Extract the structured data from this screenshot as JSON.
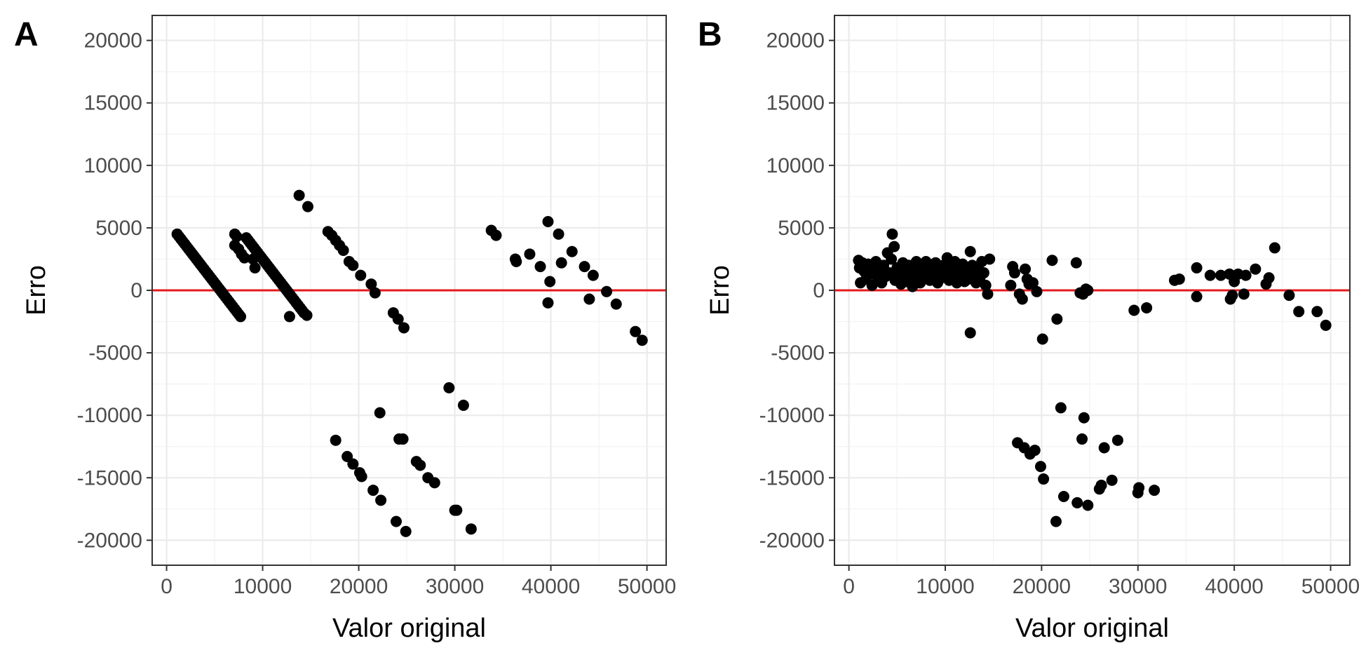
{
  "chart_data": [
    {
      "type": "scatter",
      "panel": "A",
      "xlabel": "Valor original",
      "ylabel": "Erro",
      "xlim": [
        -1500,
        52000
      ],
      "ylim": [
        -22000,
        22000
      ],
      "xticks": [
        0,
        10000,
        20000,
        30000,
        40000,
        50000
      ],
      "yticks": [
        -20000,
        -15000,
        -10000,
        -5000,
        0,
        5000,
        10000,
        15000,
        20000
      ],
      "hline": {
        "y": 0,
        "color": "#e41a1c"
      },
      "grid": true,
      "series": [
        {
          "points": [
            [
              1100,
              4500
            ],
            [
              1300,
              4300
            ],
            [
              1500,
              4100
            ],
            [
              1700,
              3900
            ],
            [
              1900,
              3700
            ],
            [
              2100,
              3500
            ],
            [
              2300,
              3300
            ],
            [
              2500,
              3100
            ],
            [
              2700,
              2900
            ],
            [
              2900,
              2700
            ],
            [
              3100,
              2500
            ],
            [
              3300,
              2300
            ],
            [
              3500,
              2100
            ],
            [
              3700,
              1900
            ],
            [
              3900,
              1700
            ],
            [
              4100,
              1500
            ],
            [
              4300,
              1300
            ],
            [
              4500,
              1100
            ],
            [
              4700,
              900
            ],
            [
              4900,
              700
            ],
            [
              5100,
              500
            ],
            [
              5300,
              300
            ],
            [
              5500,
              100
            ],
            [
              5700,
              -100
            ],
            [
              5900,
              -300
            ],
            [
              6100,
              -500
            ],
            [
              6300,
              -700
            ],
            [
              6500,
              -900
            ],
            [
              6700,
              -1100
            ],
            [
              6900,
              -1300
            ],
            [
              7100,
              -1500
            ],
            [
              7300,
              -1700
            ],
            [
              7500,
              -1900
            ],
            [
              7700,
              -2100
            ],
            [
              7100,
              4500
            ],
            [
              7300,
              4300
            ],
            [
              7100,
              3600
            ],
            [
              7500,
              3300
            ],
            [
              7800,
              2900
            ],
            [
              8100,
              2600
            ],
            [
              8300,
              4200
            ],
            [
              8500,
              4000
            ],
            [
              8700,
              3800
            ],
            [
              8900,
              3600
            ],
            [
              9100,
              3400
            ],
            [
              9300,
              3200
            ],
            [
              9000,
              2500
            ],
            [
              9200,
              1800
            ],
            [
              9500,
              3000
            ],
            [
              9700,
              2800
            ],
            [
              9900,
              2600
            ],
            [
              10100,
              2400
            ],
            [
              10300,
              2200
            ],
            [
              10500,
              2000
            ],
            [
              10700,
              1800
            ],
            [
              10900,
              1600
            ],
            [
              11100,
              1400
            ],
            [
              11300,
              1200
            ],
            [
              11500,
              1000
            ],
            [
              11700,
              800
            ],
            [
              11900,
              600
            ],
            [
              12100,
              400
            ],
            [
              12300,
              200
            ],
            [
              12500,
              0
            ],
            [
              12700,
              -200
            ],
            [
              12900,
              -400
            ],
            [
              13100,
              -600
            ],
            [
              13300,
              -800
            ],
            [
              13500,
              -1000
            ],
            [
              13700,
              -1200
            ],
            [
              13900,
              -1400
            ],
            [
              14100,
              -1600
            ],
            [
              14300,
              -1800
            ],
            [
              14600,
              -2000
            ],
            [
              12800,
              -2100
            ],
            [
              13800,
              7600
            ],
            [
              14700,
              6700
            ],
            [
              16800,
              4700
            ],
            [
              17200,
              4400
            ],
            [
              17600,
              4000
            ],
            [
              18000,
              3600
            ],
            [
              18400,
              3200
            ],
            [
              19000,
              2300
            ],
            [
              19400,
              2000
            ],
            [
              20200,
              1200
            ],
            [
              21300,
              500
            ],
            [
              21700,
              -200
            ],
            [
              23600,
              -1800
            ],
            [
              24100,
              -2300
            ],
            [
              24700,
              -3000
            ],
            [
              17600,
              -12000
            ],
            [
              18800,
              -13300
            ],
            [
              19400,
              -13900
            ],
            [
              20100,
              -14600
            ],
            [
              20300,
              -14900
            ],
            [
              21500,
              -16000
            ],
            [
              22300,
              -16800
            ],
            [
              22200,
              -9800
            ],
            [
              23900,
              -18500
            ],
            [
              24200,
              -11900
            ],
            [
              24600,
              -11900
            ],
            [
              24900,
              -19300
            ],
            [
              26000,
              -13700
            ],
            [
              26400,
              -14000
            ],
            [
              27200,
              -15000
            ],
            [
              27900,
              -15400
            ],
            [
              29400,
              -7800
            ],
            [
              30000,
              -17600
            ],
            [
              30200,
              -17600
            ],
            [
              30900,
              -9200
            ],
            [
              31700,
              -19100
            ],
            [
              33800,
              4800
            ],
            [
              34300,
              4400
            ],
            [
              36300,
              2500
            ],
            [
              36400,
              2300
            ],
            [
              37800,
              2900
            ],
            [
              38900,
              1900
            ],
            [
              39700,
              5500
            ],
            [
              39700,
              -1000
            ],
            [
              39900,
              700
            ],
            [
              40800,
              4500
            ],
            [
              41100,
              2200
            ],
            [
              42200,
              3100
            ],
            [
              43500,
              1900
            ],
            [
              44000,
              -700
            ],
            [
              44400,
              1200
            ],
            [
              45800,
              -100
            ],
            [
              46800,
              -1100
            ],
            [
              48800,
              -3300
            ],
            [
              49500,
              -4000
            ]
          ]
        }
      ]
    },
    {
      "type": "scatter",
      "panel": "B",
      "xlabel": "Valor original",
      "ylabel": "Erro",
      "xlim": [
        -1500,
        52000
      ],
      "ylim": [
        -22000,
        22000
      ],
      "xticks": [
        0,
        10000,
        20000,
        30000,
        40000,
        50000
      ],
      "yticks": [
        -20000,
        -15000,
        -10000,
        -5000,
        0,
        5000,
        10000,
        15000,
        20000
      ],
      "hline": {
        "y": 0,
        "color": "#e41a1c"
      },
      "grid": true,
      "series": [
        {
          "points": [
            [
              1000,
              2400
            ],
            [
              1100,
              1800
            ],
            [
              1200,
              600
            ],
            [
              1400,
              2200
            ],
            [
              1600,
              1500
            ],
            [
              1800,
              900
            ],
            [
              2000,
              2100
            ],
            [
              2200,
              1300
            ],
            [
              2400,
              400
            ],
            [
              2600,
              1700
            ],
            [
              2800,
              2300
            ],
            [
              3000,
              900
            ],
            [
              3200,
              1500
            ],
            [
              3400,
              600
            ],
            [
              3600,
              2000
            ],
            [
              3800,
              1100
            ],
            [
              4000,
              3000
            ],
            [
              4200,
              1400
            ],
            [
              4400,
              2500
            ],
            [
              4500,
              4500
            ],
            [
              4700,
              3500
            ],
            [
              4800,
              800
            ],
            [
              5000,
              1800
            ],
            [
              5200,
              1200
            ],
            [
              5400,
              500
            ],
            [
              5600,
              2200
            ],
            [
              5800,
              1500
            ],
            [
              6000,
              700
            ],
            [
              6200,
              2000
            ],
            [
              6400,
              1000
            ],
            [
              6600,
              300
            ],
            [
              6800,
              1700
            ],
            [
              7000,
              2300
            ],
            [
              7200,
              1300
            ],
            [
              7400,
              600
            ],
            [
              7600,
              1900
            ],
            [
              7800,
              1100
            ],
            [
              8000,
              2300
            ],
            [
              8200,
              1500
            ],
            [
              8400,
              800
            ],
            [
              8600,
              2000
            ],
            [
              8800,
              1300
            ],
            [
              9000,
              2200
            ],
            [
              9200,
              600
            ],
            [
              9400,
              1700
            ],
            [
              9600,
              1000
            ],
            [
              9800,
              2000
            ],
            [
              10000,
              1400
            ],
            [
              10200,
              2600
            ],
            [
              10400,
              800
            ],
            [
              10600,
              1900
            ],
            [
              10800,
              1200
            ],
            [
              11000,
              2300
            ],
            [
              11200,
              600
            ],
            [
              11400,
              1700
            ],
            [
              11600,
              1100
            ],
            [
              11800,
              2100
            ],
            [
              12000,
              700
            ],
            [
              12200,
              1500
            ],
            [
              12400,
              900
            ],
            [
              12600,
              3100
            ],
            [
              12800,
              2000
            ],
            [
              13000,
              1300
            ],
            [
              13200,
              600
            ],
            [
              13400,
              1800
            ],
            [
              13600,
              1000
            ],
            [
              13800,
              2300
            ],
            [
              14000,
              1400
            ],
            [
              14200,
              400
            ],
            [
              14400,
              -300
            ],
            [
              14600,
              2500
            ],
            [
              12600,
              -3400
            ],
            [
              16800,
              400
            ],
            [
              17000,
              1900
            ],
            [
              17200,
              1400
            ],
            [
              17700,
              -300
            ],
            [
              18000,
              -700
            ],
            [
              18300,
              1700
            ],
            [
              18500,
              900
            ],
            [
              18700,
              500
            ],
            [
              19100,
              600
            ],
            [
              19500,
              -100
            ],
            [
              20100,
              -3900
            ],
            [
              21100,
              2400
            ],
            [
              21600,
              -2300
            ],
            [
              23600,
              2200
            ],
            [
              24000,
              -200
            ],
            [
              24300,
              -300
            ],
            [
              24600,
              100
            ],
            [
              24800,
              0
            ],
            [
              17500,
              -12200
            ],
            [
              18200,
              -12600
            ],
            [
              18800,
              -13100
            ],
            [
              19300,
              -12800
            ],
            [
              19900,
              -14100
            ],
            [
              20200,
              -15100
            ],
            [
              21500,
              -18500
            ],
            [
              22000,
              -9400
            ],
            [
              22300,
              -16500
            ],
            [
              23700,
              -17000
            ],
            [
              24200,
              -11900
            ],
            [
              24400,
              -10200
            ],
            [
              24800,
              -17200
            ],
            [
              26000,
              -15900
            ],
            [
              26200,
              -15600
            ],
            [
              26500,
              -12600
            ],
            [
              27300,
              -15200
            ],
            [
              27900,
              -12000
            ],
            [
              30000,
              -16200
            ],
            [
              30100,
              -15800
            ],
            [
              31700,
              -16000
            ],
            [
              29600,
              -1600
            ],
            [
              30900,
              -1400
            ],
            [
              33800,
              800
            ],
            [
              34300,
              900
            ],
            [
              36100,
              1800
            ],
            [
              36100,
              -500
            ],
            [
              37500,
              1200
            ],
            [
              38600,
              1200
            ],
            [
              39500,
              1300
            ],
            [
              39600,
              -700
            ],
            [
              39800,
              -400
            ],
            [
              40000,
              700
            ],
            [
              40400,
              1300
            ],
            [
              41000,
              -300
            ],
            [
              41200,
              1200
            ],
            [
              42200,
              1700
            ],
            [
              43300,
              500
            ],
            [
              43600,
              1000
            ],
            [
              44200,
              3400
            ],
            [
              45700,
              -400
            ],
            [
              46700,
              -1700
            ],
            [
              48600,
              -1700
            ],
            [
              49500,
              -2800
            ]
          ]
        }
      ]
    }
  ]
}
